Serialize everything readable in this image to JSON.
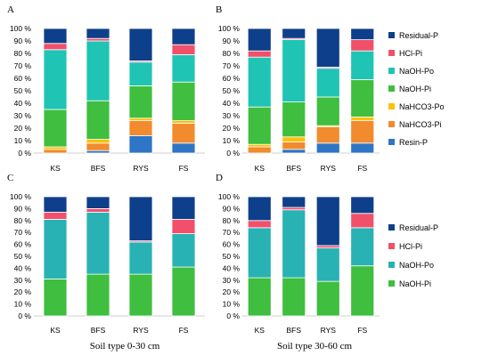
{
  "chart_data": [
    {
      "panel": "A",
      "type": "bar",
      "stacked": true,
      "percent": true,
      "categories": [
        "KS",
        "BFS",
        "RYS",
        "FS"
      ],
      "series": [
        {
          "name": "Resin-P",
          "color": "#2e75c6",
          "values": [
            0,
            2,
            14,
            8
          ]
        },
        {
          "name": "NaHCO3-Pi",
          "color": "#f28a2e",
          "values": [
            3,
            6,
            12,
            16
          ]
        },
        {
          "name": "NaHCO3-Po",
          "color": "#ffc000",
          "values": [
            2,
            3,
            2,
            2
          ]
        },
        {
          "name": "NaOH-Pi",
          "color": "#3fbe3f",
          "values": [
            30,
            31,
            26,
            31
          ]
        },
        {
          "name": "NaOH-Po",
          "color": "#1fc4b4",
          "values": [
            48,
            48,
            19,
            22
          ]
        },
        {
          "name": "HCl-Pi",
          "color": "#f2506a",
          "values": [
            5,
            2,
            1,
            8
          ]
        },
        {
          "name": "Residual-P",
          "color": "#0e3f8a",
          "values": [
            12,
            8,
            26,
            13
          ]
        }
      ],
      "ylim": [
        0,
        100
      ],
      "yticks": [
        "0 %",
        "10 %",
        "20 %",
        "30 %",
        "40 %",
        "50 %",
        "60 %",
        "70 %",
        "80 %",
        "90 %",
        "100 %"
      ],
      "title": "",
      "xlabel": "",
      "ylabel": ""
    },
    {
      "panel": "B",
      "type": "bar",
      "stacked": true,
      "percent": true,
      "categories": [
        "KS",
        "BFS",
        "RYS",
        "FS"
      ],
      "series": [
        {
          "name": "Resin-P",
          "color": "#2e75c6",
          "values": [
            0,
            3,
            8,
            8
          ]
        },
        {
          "name": "NaHCO3-Pi",
          "color": "#f28a2e",
          "values": [
            5,
            6,
            13,
            18
          ]
        },
        {
          "name": "NaHCO3-Po",
          "color": "#ffc000",
          "values": [
            2,
            4,
            1,
            3
          ]
        },
        {
          "name": "NaOH-Pi",
          "color": "#3fbe3f",
          "values": [
            30,
            28,
            23,
            30
          ]
        },
        {
          "name": "NaOH-Po",
          "color": "#1fc4b4",
          "values": [
            40,
            50,
            23,
            23
          ]
        },
        {
          "name": "HCl-Pi",
          "color": "#f2506a",
          "values": [
            5,
            1,
            1,
            9
          ]
        },
        {
          "name": "Residual-P",
          "color": "#0e3f8a",
          "values": [
            18,
            8,
            31,
            9
          ]
        }
      ],
      "ylim": [
        0,
        100
      ],
      "yticks": [
        "0 %",
        "10 %",
        "20 %",
        "30 %",
        "40 %",
        "50 %",
        "60 %",
        "70 %",
        "80 %",
        "90 %",
        "100 %"
      ],
      "legend": "right",
      "title": "",
      "xlabel": "",
      "ylabel": ""
    },
    {
      "panel": "C",
      "type": "bar",
      "stacked": true,
      "percent": true,
      "categories": [
        "KS",
        "BFS",
        "RYS",
        "FS"
      ],
      "series": [
        {
          "name": "NaOH-Pi",
          "color": "#3fbe3f",
          "values": [
            31,
            35,
            35,
            41
          ]
        },
        {
          "name": "NaOH-Po",
          "color": "#29b2b4",
          "values": [
            50,
            52,
            27,
            28
          ]
        },
        {
          "name": "HCl-Pi",
          "color": "#f2506a",
          "values": [
            6,
            3,
            1,
            12
          ]
        },
        {
          "name": "Residual-P",
          "color": "#0e3f8a",
          "values": [
            13,
            10,
            37,
            19
          ]
        }
      ],
      "ylim": [
        0,
        100
      ],
      "yticks": [
        "0 %",
        "10 %",
        "20 %",
        "30 %",
        "40 %",
        "50 %",
        "60 %",
        "70 %",
        "80 %",
        "90 %",
        "100 %"
      ],
      "title": "",
      "xlabel": "Soil type 0-30 cm",
      "ylabel": ""
    },
    {
      "panel": "D",
      "type": "bar",
      "stacked": true,
      "percent": true,
      "categories": [
        "KS",
        "BFS",
        "RYS",
        "FS"
      ],
      "series": [
        {
          "name": "NaOH-Pi",
          "color": "#3fbe3f",
          "values": [
            32,
            32,
            29,
            42
          ]
        },
        {
          "name": "NaOH-Po",
          "color": "#29b2b4",
          "values": [
            42,
            57,
            28,
            32
          ]
        },
        {
          "name": "HCl-Pi",
          "color": "#f2506a",
          "values": [
            6,
            2,
            2,
            12
          ]
        },
        {
          "name": "Residual-P",
          "color": "#0e3f8a",
          "values": [
            20,
            9,
            41,
            14
          ]
        }
      ],
      "ylim": [
        0,
        100
      ],
      "yticks": [
        "0 %",
        "10 %",
        "20 %",
        "30 %",
        "40 %",
        "50 %",
        "60 %",
        "70 %",
        "80 %",
        "90 %",
        "100 %"
      ],
      "legend": "right",
      "title": "",
      "xlabel": "Soil type 30-60 cm",
      "ylabel": ""
    }
  ]
}
